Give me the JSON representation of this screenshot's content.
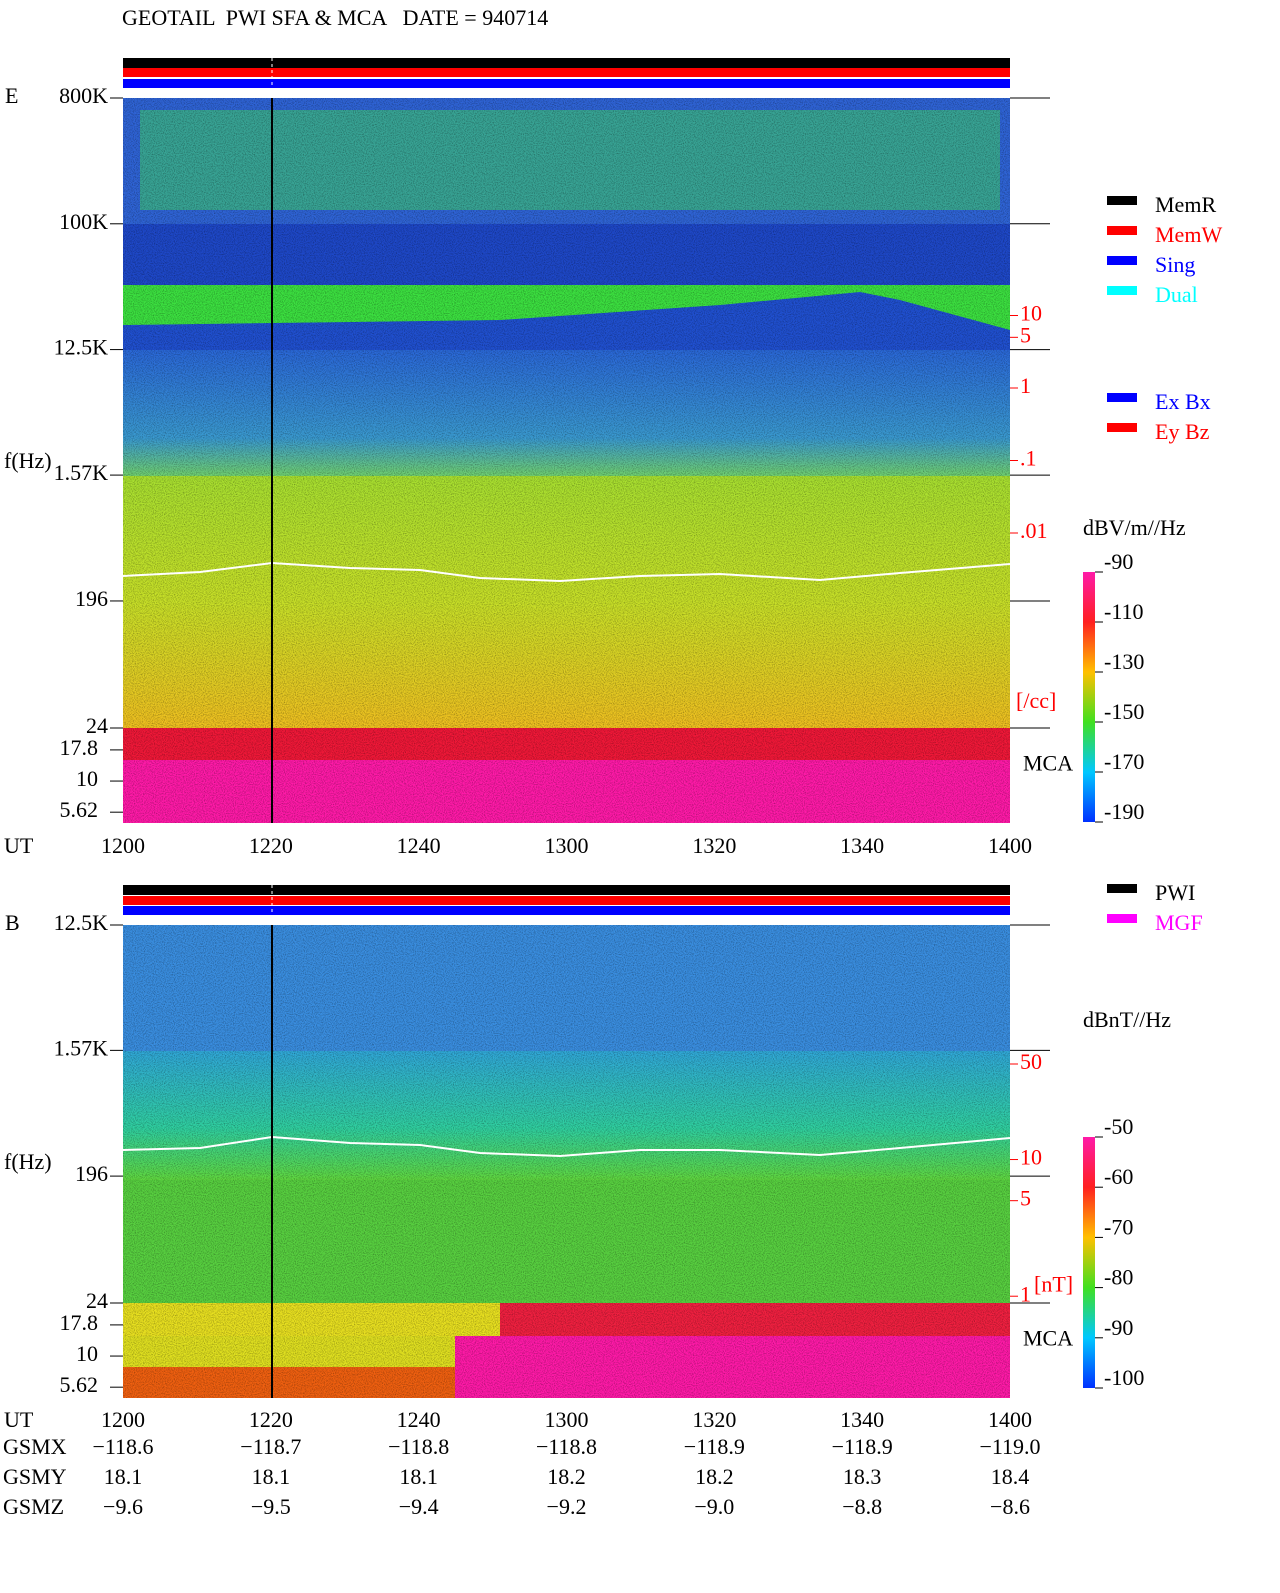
{
  "title": "GEOTAIL  PWI SFA & MCA   DATE = 940714",
  "chart_data": [
    {
      "type": "spectrogram",
      "panel_label": "E",
      "ylabel": "f(Hz)",
      "xlabel": "UT",
      "yscale": "log",
      "ylim": [
        24,
        800000
      ],
      "yticks": [
        {
          "value": 800000,
          "label": "800K"
        },
        {
          "value": 100000,
          "label": "100K"
        },
        {
          "value": 12500,
          "label": "12.5K"
        },
        {
          "value": 1570,
          "label": "1.57K"
        },
        196,
        24
      ],
      "mca_label": "MCA",
      "mca_ylim": [
        4.6,
        26.7
      ],
      "mca_yticks": [
        17.8,
        10,
        5.62
      ],
      "x_categories": [
        "1200",
        "1220",
        "1240",
        "1300",
        "1320",
        "1340",
        "1400"
      ],
      "y2lim": [
        1e-06,
        10000
      ],
      "y2ticks": [
        10,
        5,
        1,
        {
          "value": 0.1,
          "label": ".1"
        },
        {
          "value": 0.01,
          "label": ".01"
        }
      ],
      "y2_unit": "[/cc]",
      "y2_color": "#ff0000",
      "colorbar": {
        "label": "dBV/m//Hz",
        "zlim": [
          -190,
          -90
        ],
        "ticks": [
          -90,
          -110,
          -130,
          -150,
          -170,
          -190
        ]
      },
      "legend": [
        {
          "name": "MemR",
          "color": "#000000"
        },
        {
          "name": "MemW",
          "color": "#ff0000"
        },
        {
          "name": "Sing",
          "color": "#0000ff"
        },
        {
          "name": "Dual",
          "color": "#00ffff"
        }
      ],
      "legend2": [
        {
          "name": "Ex Bx",
          "color": "#0000ff"
        },
        {
          "name": "Ey Bz",
          "color": "#ff0000"
        }
      ]
    },
    {
      "type": "spectrogram",
      "panel_label": "B",
      "ylabel": "f(Hz)",
      "xlabel": "UT",
      "yscale": "log",
      "ylim": [
        24,
        12500
      ],
      "yticks": [
        {
          "value": 12500,
          "label": "12.5K"
        },
        {
          "value": 1570,
          "label": "1.57K"
        },
        196,
        24
      ],
      "mca_label": "MCA",
      "mca_ylim": [
        4.6,
        26.7
      ],
      "mca_yticks": [
        17.8,
        10,
        5.62
      ],
      "x_categories": [
        "1200",
        "1220",
        "1240",
        "1300",
        "1320",
        "1340",
        "1400"
      ],
      "y2lim": [
        0.18,
        520
      ],
      "y2ticks": [
        50,
        10,
        5,
        1
      ],
      "y2_unit": "[nT]",
      "y2_color": "#ff0000",
      "colorbar": {
        "label": "dBnT//Hz",
        "zlim": [
          -100,
          -50
        ],
        "ticks": [
          -50,
          -60,
          -70,
          -80,
          -90,
          -100
        ]
      },
      "legend": [
        {
          "name": "PWI",
          "color": "#000000"
        },
        {
          "name": "MGF",
          "color": "#ff00ff"
        }
      ]
    }
  ],
  "ephemeris": {
    "rows": [
      {
        "label": "GSMX",
        "values": [
          "−118.6",
          "−118.7",
          "−118.8",
          "−118.8",
          "−118.9",
          "−118.9",
          "−119.0"
        ]
      },
      {
        "label": "GSMY",
        "values": [
          "18.1",
          "18.1",
          "18.1",
          "18.2",
          "18.2",
          "18.3",
          "18.4"
        ]
      },
      {
        "label": "GSMZ",
        "values": [
          "−9.6",
          "−9.5",
          "−9.4",
          "−9.2",
          "−9.0",
          "−8.8",
          "−8.6"
        ]
      }
    ]
  }
}
